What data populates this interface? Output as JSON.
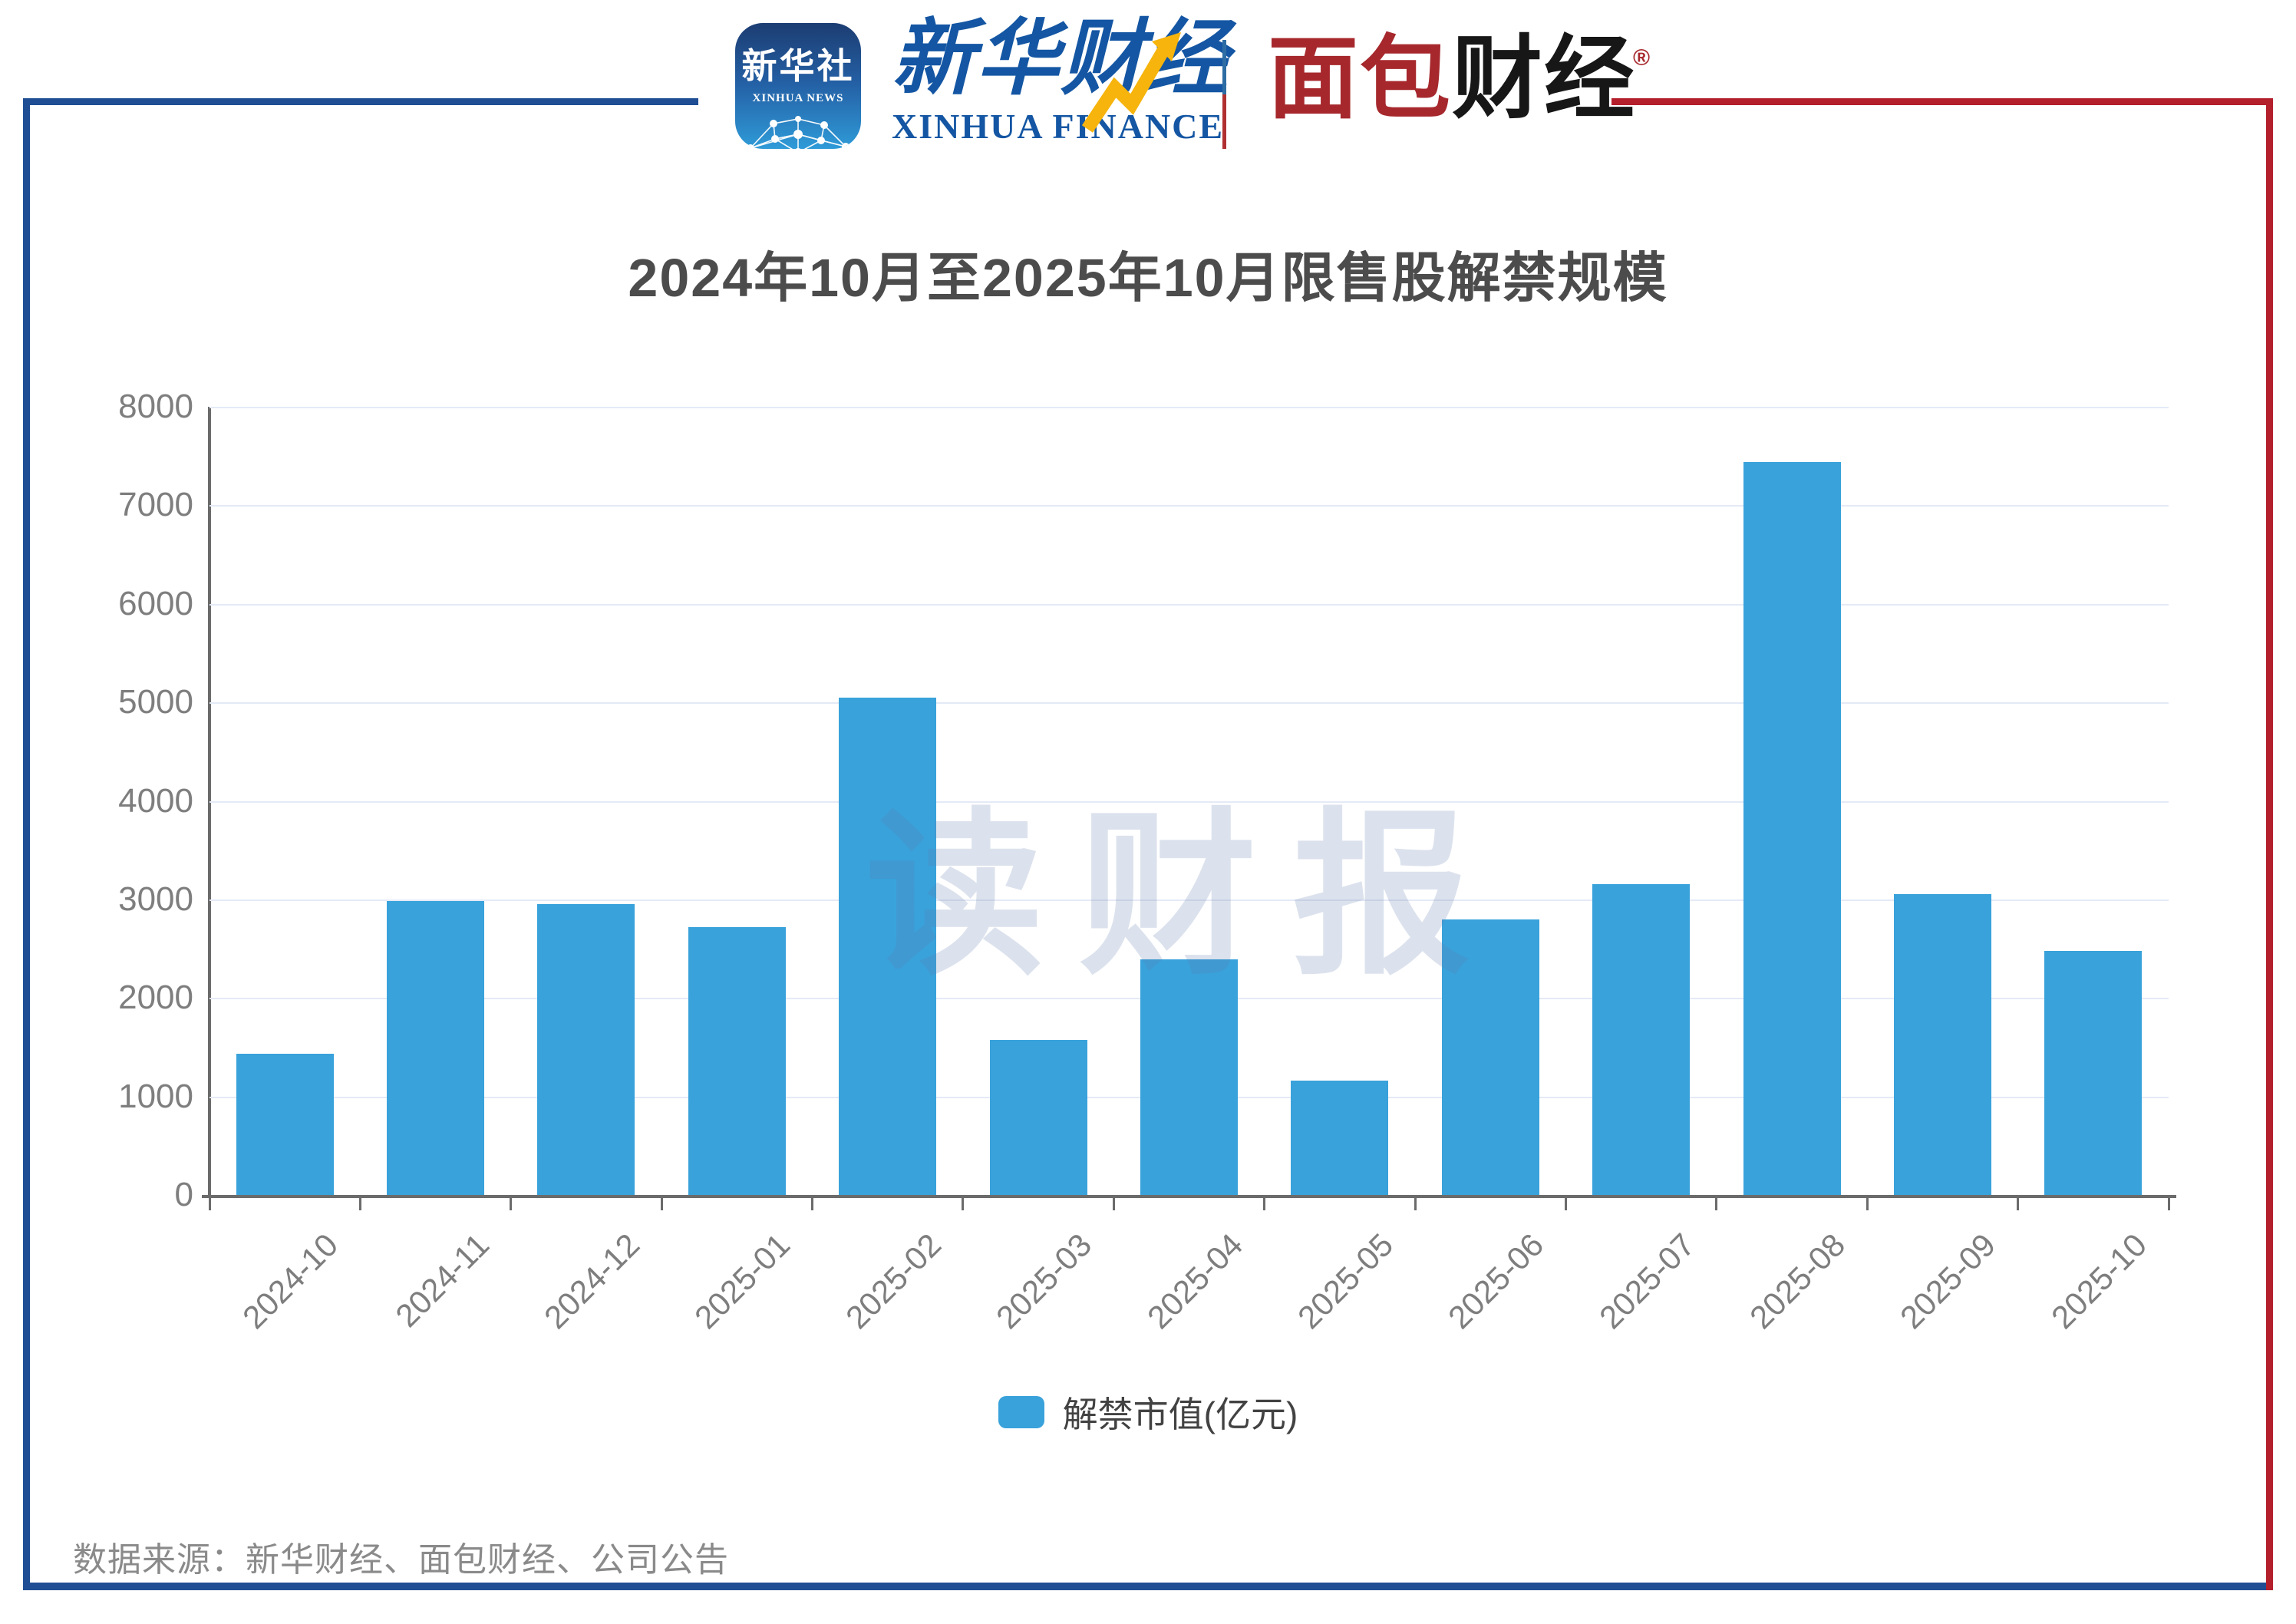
{
  "header": {
    "xinhua_app": {
      "cn": "新华社",
      "en": "XINHUA NEWS"
    },
    "xinhua_finance": {
      "cn": "新华财经",
      "en": "XINHUA FINANCE"
    },
    "bread_finance": {
      "cn_red": "面包",
      "cn_black": "财经",
      "reg_mark": "®"
    }
  },
  "chart_data": {
    "type": "bar",
    "title": "2024年10月至2025年10月限售股解禁规模",
    "categories": [
      "2024-10",
      "2024-11",
      "2024-12",
      "2025-01",
      "2025-02",
      "2025-03",
      "2025-04",
      "2025-05",
      "2025-06",
      "2025-07",
      "2025-08",
      "2025-09",
      "2025-10"
    ],
    "series": [
      {
        "name": "解禁市值(亿元)",
        "values": [
          1430,
          2985,
          2950,
          2720,
          5050,
          1570,
          2390,
          1160,
          2800,
          3155,
          7440,
          3055,
          2480
        ]
      }
    ],
    "xlabel": "",
    "ylabel": "",
    "ylim": [
      0,
      8000
    ],
    "ytick_step": 1000,
    "grid": true,
    "legend_position": "bottom",
    "x_tick_rotation_deg": 45
  },
  "legend": {
    "label": "解禁市值(亿元)"
  },
  "watermark": "读财报",
  "source_note": "数据来源：新华财经、面包财经、公司公告",
  "colors": {
    "bar": "#39a2db",
    "axis": "#6b6b6b",
    "gridline": "#e4eaf6",
    "title_text": "#4c4c4c",
    "tick_label": "#7e7e7e",
    "legend_text": "#424242",
    "source_text": "#8a8a8a",
    "frame_blue": "#1f4e94",
    "frame_red": "#b41f2c",
    "xinhua_blue": "#1456a3",
    "arrow_yellow": "#f6b40c",
    "bread_red": "#a6282d",
    "bread_black": "#171717"
  }
}
